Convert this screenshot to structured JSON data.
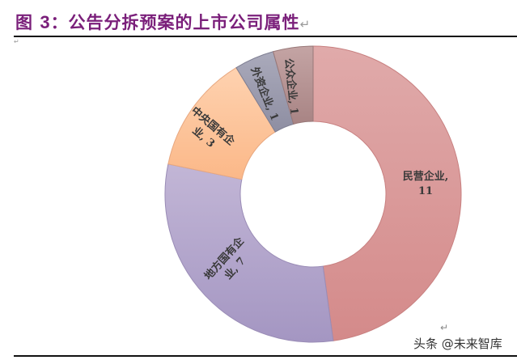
{
  "header": {
    "fig_prefix": "图 ",
    "fig_number": "3",
    "title": "：公告分拆预案的上市公司属性",
    "para_mark": "↵",
    "small_mark": "↵"
  },
  "watermark": "头条 @未来智库",
  "return_mark": "↵",
  "chart_data": {
    "type": "pie",
    "subtype": "donut",
    "title": "图3：公告分拆预案的上市公司属性",
    "categories": [
      "民营企业",
      "地方国有企业",
      "中央国有企业",
      "外资企业",
      "公众企业"
    ],
    "values": [
      11,
      7,
      3,
      1,
      1
    ],
    "colors": [
      "#d99a9a",
      "#b0a0c8",
      "#fcc49a",
      "#9a9aaa",
      "#b49494"
    ],
    "labels": [
      "民营企业, 11",
      "地方国有企业, 7",
      "中央国有企业, 3",
      "外资企业, 1",
      "公众企业, 1"
    ],
    "start_angle": "top, clockwise",
    "legend": "none (data labels on slices)"
  }
}
